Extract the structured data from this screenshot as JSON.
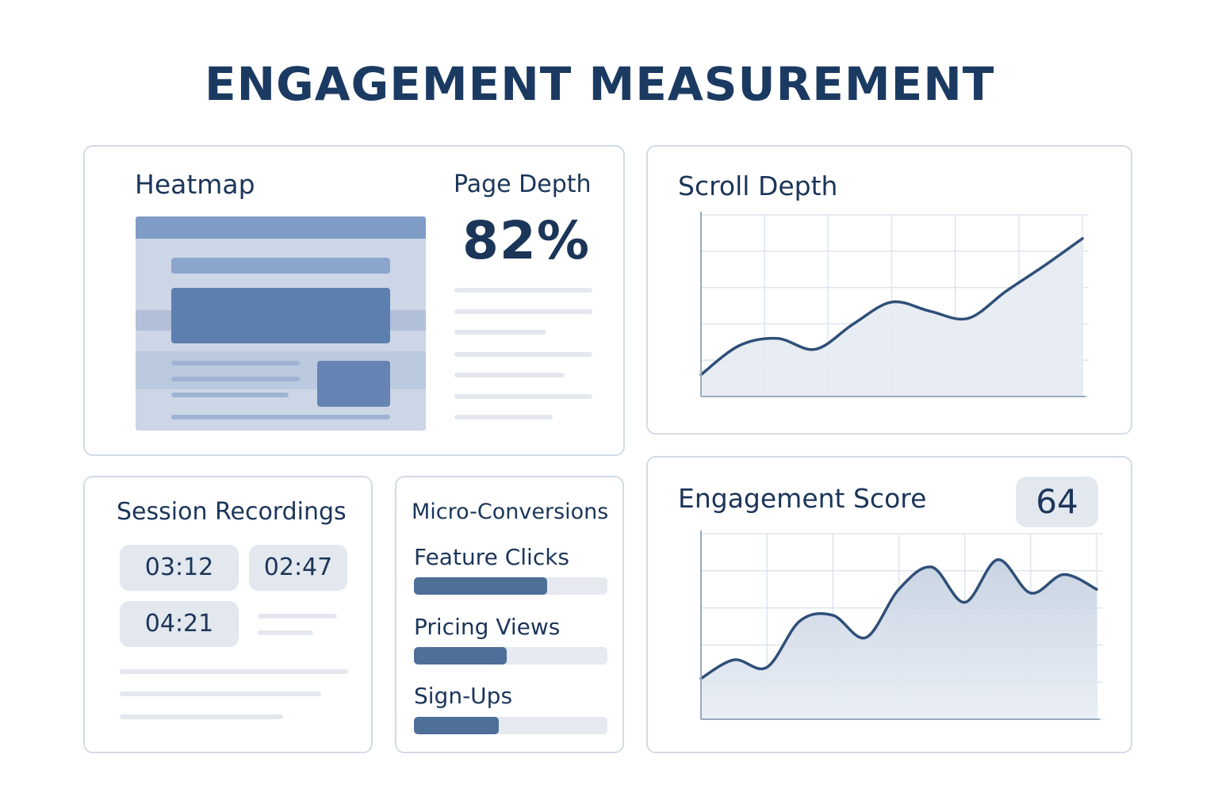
{
  "title": "ENGAGEMENT MEASUREMENT",
  "heatmap": {
    "title": "Heatmap",
    "page_depth_label": "Page Depth",
    "page_depth_value": "82%"
  },
  "scroll_depth": {
    "title": "Scroll Depth"
  },
  "engagement_score": {
    "title": "Engagement Score",
    "value": "64"
  },
  "session_recordings": {
    "title": "Session Recordings",
    "durations": [
      "03:12",
      "02:47",
      "04:21"
    ]
  },
  "micro_conversions": {
    "title": "Micro-Conversions",
    "items": [
      {
        "label": "Feature Clicks",
        "fraction": 0.69
      },
      {
        "label": "Pricing Views",
        "fraction": 0.48
      },
      {
        "label": "Sign-Ups",
        "fraction": 0.44
      }
    ]
  },
  "colors": {
    "title": "#1b3a62",
    "accent": "#4e6f98",
    "line": "#2f4f78",
    "area": "#c3cfe0",
    "card_border": "#d3dbe6",
    "chip": "#e3e8ef"
  },
  "chart_data": [
    {
      "type": "area",
      "x": [
        0,
        1,
        2,
        3,
        4,
        5,
        6,
        7,
        8,
        9,
        10
      ],
      "values": [
        0.12,
        0.28,
        0.32,
        0.26,
        0.4,
        0.52,
        0.47,
        0.43,
        0.58,
        0.72,
        0.87
      ],
      "ylim": [
        0,
        1
      ],
      "grid": true
    },
    {
      "type": "area",
      "x": [
        0,
        1,
        2,
        3,
        4,
        5,
        6,
        7,
        8,
        9,
        10,
        11,
        12
      ],
      "values": [
        0.22,
        0.32,
        0.28,
        0.53,
        0.56,
        0.44,
        0.7,
        0.82,
        0.63,
        0.86,
        0.68,
        0.78,
        0.7
      ],
      "ylim": [
        0,
        1
      ],
      "grid": true
    }
  ]
}
